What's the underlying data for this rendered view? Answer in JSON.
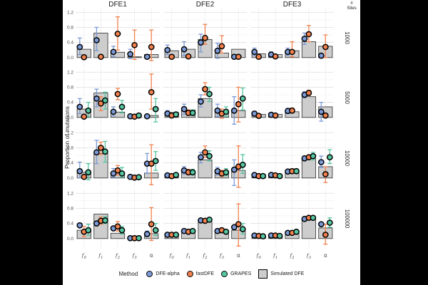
{
  "figure": {
    "y_axis_title": "Proportion of mutations",
    "sites_line1": "#",
    "sites_line2": "Sites",
    "y_ticks": [
      "0.0",
      "0.4",
      "0.8",
      "1.2"
    ]
  },
  "legend": {
    "title": "Method",
    "items": [
      {
        "label": "DFE-alpha",
        "color": "#7C9AD6",
        "type": "point"
      },
      {
        "label": "fastDFE",
        "color": "#F2814E",
        "type": "point"
      },
      {
        "label": "GRAPES",
        "color": "#56C6A2",
        "type": "point"
      },
      {
        "label": "Simulated DFE",
        "color": "#CDCDCD",
        "type": "bar"
      }
    ]
  },
  "colors": {
    "DFE-alpha": "#7C9AD6",
    "fastDFE": "#F2814E",
    "GRAPES": "#56C6A2",
    "bar_fill": "#CDCDCD",
    "bar_stroke": "#3F3F3F",
    "grid_major": "#E3E3E3",
    "grid_minor": "#F2F2F2",
    "grid_vertical": "#ECECEC",
    "axis_text": "#4D4D4D",
    "title_text": "#1A1A1A"
  },
  "chart_data": {
    "type": "bar",
    "description": "Facet grid of simulated DFE bars with method estimate points and error bars",
    "columns": [
      "DFE1",
      "DFE2",
      "DFE3"
    ],
    "rows": [
      "1000",
      "5000",
      "10000",
      "100000"
    ],
    "categories": [
      "f0",
      "f1",
      "f2",
      "f3",
      "alpha"
    ],
    "category_display": [
      {
        "base": "f",
        "sub": "0"
      },
      {
        "base": "f",
        "sub": "1"
      },
      {
        "base": "f",
        "sub": "2"
      },
      {
        "base": "f",
        "sub": "3"
      },
      {
        "base": "α",
        "sub": ""
      }
    ],
    "ylabel": "Proportion of mutations",
    "ylim": [
      -0.25,
      1.3
    ],
    "y_major_ticks": [
      0.0,
      0.4,
      0.8,
      1.2
    ],
    "y_minor_ticks": [
      0.2,
      0.6,
      1.0
    ],
    "panels": [
      {
        "col": "DFE1",
        "row": "1000",
        "bars": [
          0.22,
          0.65,
          0.14,
          0.02,
          0.08
        ],
        "series": [
          {
            "method": "DFE-alpha",
            "y": [
              0.28,
              0.46,
              0.15,
              0.09,
              0.02
            ],
            "lo": [
              0.08,
              0.18,
              0.03,
              -0.03,
              0.0
            ],
            "hi": [
              0.52,
              0.8,
              0.3,
              0.22,
              0.05
            ]
          },
          {
            "method": "fastDFE",
            "y": [
              0.01,
              0.02,
              0.63,
              0.33,
              0.28
            ],
            "lo": [
              0.0,
              0.01,
              0.2,
              -0.05,
              -0.08
            ],
            "hi": [
              0.03,
              0.04,
              1.08,
              0.73,
              0.73
            ]
          }
        ]
      },
      {
        "col": "DFE2",
        "row": "1000",
        "bars": [
          0.18,
          0.22,
          0.48,
          0.12,
          0.22
        ],
        "series": [
          {
            "method": "DFE-alpha",
            "y": [
              0.2,
              0.22,
              0.4,
              0.18,
              0.02
            ],
            "lo": [
              0.08,
              0.05,
              0.15,
              -0.02,
              0.0
            ],
            "hi": [
              0.33,
              0.42,
              0.62,
              0.38,
              0.05
            ]
          },
          {
            "method": "fastDFE",
            "y": [
              0.02,
              0.03,
              0.52,
              0.3,
              0.02
            ],
            "lo": [
              0.01,
              0.01,
              0.35,
              0.12,
              0.0
            ],
            "hi": [
              0.04,
              0.05,
              0.88,
              0.58,
              0.05
            ]
          }
        ]
      },
      {
        "col": "DFE3",
        "row": "1000",
        "bars": [
          0.1,
          0.08,
          0.18,
          0.42,
          0.3
        ],
        "series": [
          {
            "method": "DFE-alpha",
            "y": [
              0.15,
              0.08,
              0.15,
              0.5,
              0.05
            ],
            "lo": [
              0.05,
              0.02,
              0.05,
              0.35,
              0.02
            ],
            "hi": [
              0.25,
              0.15,
              0.25,
              0.65,
              0.08
            ]
          },
          {
            "method": "fastDFE",
            "y": [
              0.02,
              0.03,
              0.15,
              0.62,
              0.28
            ],
            "lo": [
              0.01,
              0.01,
              0.02,
              0.42,
              0.0
            ],
            "hi": [
              0.04,
              0.05,
              0.42,
              0.85,
              0.6
            ]
          }
        ]
      },
      {
        "col": "DFE1",
        "row": "5000",
        "bars": [
          0.22,
          0.65,
          0.14,
          0.01,
          0.05
        ],
        "series": [
          {
            "method": "DFE-alpha",
            "y": [
              0.28,
              0.5,
              0.15,
              0.03,
              0.03
            ],
            "lo": [
              0.1,
              0.28,
              0.04,
              0.01,
              0.01
            ],
            "hi": [
              0.5,
              0.75,
              0.28,
              0.06,
              0.06
            ]
          },
          {
            "method": "fastDFE",
            "y": [
              0.02,
              0.37,
              0.62,
              0.02,
              0.67
            ],
            "lo": [
              0.01,
              0.18,
              0.47,
              0.01,
              0.22
            ],
            "hi": [
              0.04,
              0.55,
              0.77,
              0.04,
              1.15
            ]
          },
          {
            "method": "GRAPES",
            "y": [
              0.18,
              0.45,
              0.28,
              0.05,
              0.22
            ],
            "lo": [
              0.02,
              0.22,
              0.12,
              0.02,
              -0.12
            ],
            "hi": [
              0.4,
              0.67,
              0.45,
              0.09,
              0.5
            ]
          }
        ]
      },
      {
        "col": "DFE2",
        "row": "5000",
        "bars": [
          0.13,
          0.2,
          0.5,
          0.15,
          0.18
        ],
        "series": [
          {
            "method": "DFE-alpha",
            "y": [
              0.1,
              0.22,
              0.42,
              0.18,
              0.18
            ],
            "lo": [
              0.04,
              0.08,
              0.28,
              0.02,
              -0.18
            ],
            "hi": [
              0.18,
              0.35,
              0.6,
              0.35,
              0.55
            ]
          },
          {
            "method": "fastDFE",
            "y": [
              0.05,
              0.12,
              0.75,
              0.1,
              0.35
            ],
            "lo": [
              0.02,
              0.05,
              0.6,
              -0.02,
              -0.12
            ],
            "hi": [
              0.09,
              0.2,
              0.92,
              0.22,
              0.8
            ]
          },
          {
            "method": "GRAPES",
            "y": [
              0.08,
              0.12,
              0.62,
              0.15,
              0.5
            ],
            "lo": [
              0.03,
              0.05,
              0.42,
              0.02,
              0.2
            ],
            "hi": [
              0.14,
              0.2,
              0.8,
              0.28,
              0.78
            ]
          }
        ]
      },
      {
        "col": "DFE3",
        "row": "5000",
        "bars": [
          0.08,
          0.08,
          0.15,
          0.55,
          0.28
        ],
        "series": [
          {
            "method": "DFE-alpha",
            "y": [
              0.1,
              0.07,
              0.17,
              0.6,
              0.15
            ],
            "lo": [
              0.05,
              0.03,
              0.1,
              0.52,
              -0.1
            ],
            "hi": [
              0.16,
              0.12,
              0.24,
              0.68,
              0.4
            ]
          },
          {
            "method": "fastDFE",
            "y": [
              0.04,
              0.05,
              0.18,
              0.65,
              0.05
            ],
            "lo": [
              0.02,
              0.02,
              0.12,
              0.58,
              0.02
            ],
            "hi": [
              0.07,
              0.08,
              0.25,
              0.72,
              0.09
            ]
          }
        ]
      },
      {
        "col": "DFE1",
        "row": "10000",
        "bars": [
          0.15,
          0.65,
          0.14,
          0.02,
          0.13
        ],
        "series": [
          {
            "method": "DFE-alpha",
            "y": [
              0.18,
              0.68,
              0.12,
              0.03,
              0.38
            ],
            "lo": [
              0.0,
              0.38,
              0.02,
              0.01,
              0.12
            ],
            "hi": [
              0.42,
              1.0,
              0.25,
              0.06,
              0.65
            ]
          },
          {
            "method": "fastDFE",
            "y": [
              0.03,
              0.8,
              0.2,
              0.01,
              0.38
            ],
            "lo": [
              0.01,
              0.62,
              0.08,
              0.0,
              -0.18
            ],
            "hi": [
              0.06,
              0.95,
              0.33,
              0.03,
              0.88
            ]
          },
          {
            "method": "GRAPES",
            "y": [
              0.15,
              0.7,
              0.12,
              0.02,
              0.45
            ],
            "lo": [
              -0.05,
              0.42,
              0.02,
              0.01,
              0.2
            ],
            "hi": [
              0.38,
              0.97,
              0.28,
              0.05,
              0.7
            ]
          }
        ]
      },
      {
        "col": "DFE2",
        "row": "10000",
        "bars": [
          0.1,
          0.18,
          0.48,
          0.15,
          0.2
        ],
        "series": [
          {
            "method": "DFE-alpha",
            "y": [
              0.07,
              0.2,
              0.55,
              0.18,
              0.22
            ],
            "lo": [
              0.03,
              0.1,
              0.4,
              0.08,
              -0.2
            ],
            "hi": [
              0.12,
              0.3,
              0.68,
              0.28,
              0.48
            ]
          },
          {
            "method": "fastDFE",
            "y": [
              0.05,
              0.15,
              0.68,
              0.12,
              0.3
            ],
            "lo": [
              0.02,
              0.08,
              0.55,
              0.04,
              -0.25
            ],
            "hi": [
              0.09,
              0.23,
              0.85,
              0.2,
              0.85
            ]
          },
          {
            "method": "GRAPES",
            "y": [
              0.08,
              0.15,
              0.58,
              0.15,
              0.35
            ],
            "lo": [
              0.03,
              0.08,
              0.45,
              0.06,
              0.12
            ],
            "hi": [
              0.14,
              0.23,
              0.72,
              0.25,
              0.62
            ]
          }
        ]
      },
      {
        "col": "DFE3",
        "row": "10000",
        "bars": [
          0.08,
          0.08,
          0.15,
          0.52,
          0.3
        ],
        "series": [
          {
            "method": "DFE-alpha",
            "y": [
              0.08,
              0.08,
              0.17,
              0.52,
              0.42
            ],
            "lo": [
              0.04,
              0.04,
              0.12,
              0.46,
              0.28
            ],
            "hi": [
              0.13,
              0.13,
              0.23,
              0.58,
              0.58
            ]
          },
          {
            "method": "fastDFE",
            "y": [
              0.05,
              0.07,
              0.18,
              0.55,
              0.1
            ],
            "lo": [
              0.02,
              0.03,
              0.13,
              0.49,
              -0.12
            ],
            "hi": [
              0.08,
              0.11,
              0.24,
              0.61,
              0.3
            ]
          },
          {
            "method": "GRAPES",
            "y": [
              0.05,
              0.05,
              0.18,
              0.58,
              0.55
            ],
            "lo": [
              0.02,
              0.02,
              0.13,
              0.48,
              0.38
            ],
            "hi": [
              0.09,
              0.09,
              0.24,
              0.68,
              0.75
            ]
          }
        ]
      },
      {
        "col": "DFE1",
        "row": "100000",
        "bars": [
          0.22,
          0.65,
          0.14,
          0.01,
          0.13
        ],
        "series": [
          {
            "method": "DFE-alpha",
            "y": [
              0.35,
              0.4,
              0.27,
              0.01,
              0.12
            ],
            "lo": [
              0.3,
              0.36,
              0.22,
              0.0,
              0.05
            ],
            "hi": [
              0.4,
              0.45,
              0.32,
              0.02,
              0.2
            ]
          },
          {
            "method": "fastDFE",
            "y": [
              0.18,
              0.47,
              0.32,
              0.01,
              0.38
            ],
            "lo": [
              0.05,
              0.38,
              0.2,
              0.0,
              -0.05
            ],
            "hi": [
              0.32,
              0.57,
              0.45,
              0.02,
              0.82
            ]
          },
          {
            "method": "GRAPES",
            "y": [
              0.22,
              0.48,
              0.22,
              0.01,
              0.22
            ],
            "lo": [
              0.08,
              0.4,
              0.12,
              0.0,
              0.08
            ],
            "hi": [
              0.38,
              0.58,
              0.32,
              0.02,
              0.4
            ]
          }
        ]
      },
      {
        "col": "DFE2",
        "row": "100000",
        "bars": [
          0.1,
          0.15,
          0.45,
          0.15,
          0.22
        ],
        "series": [
          {
            "method": "DFE-alpha",
            "y": [
              0.1,
              0.2,
              0.48,
              0.2,
              0.3
            ],
            "lo": [
              0.07,
              0.17,
              0.44,
              0.17,
              0.25
            ],
            "hi": [
              0.13,
              0.23,
              0.52,
              0.23,
              0.35
            ]
          },
          {
            "method": "fastDFE",
            "y": [
              0.1,
              0.18,
              0.47,
              0.22,
              0.38
            ],
            "lo": [
              0.07,
              0.15,
              0.43,
              0.18,
              -0.2
            ],
            "hi": [
              0.13,
              0.21,
              0.51,
              0.26,
              0.92
            ]
          },
          {
            "method": "GRAPES",
            "y": [
              0.1,
              0.2,
              0.5,
              0.18,
              0.25
            ],
            "lo": [
              0.07,
              0.17,
              0.46,
              0.15,
              0.12
            ],
            "hi": [
              0.13,
              0.23,
              0.54,
              0.21,
              0.4
            ]
          }
        ]
      },
      {
        "col": "DFE3",
        "row": "100000",
        "bars": [
          0.08,
          0.08,
          0.15,
          0.5,
          0.28
        ],
        "series": [
          {
            "method": "DFE-alpha",
            "y": [
              0.08,
              0.08,
              0.15,
              0.52,
              0.38
            ],
            "lo": [
              0.06,
              0.06,
              0.12,
              0.49,
              0.33
            ],
            "hi": [
              0.1,
              0.1,
              0.18,
              0.55,
              0.43
            ]
          },
          {
            "method": "fastDFE",
            "y": [
              0.07,
              0.08,
              0.15,
              0.55,
              0.1
            ],
            "lo": [
              0.05,
              0.06,
              0.12,
              0.52,
              -0.15
            ],
            "hi": [
              0.09,
              0.1,
              0.18,
              0.58,
              0.38
            ]
          },
          {
            "method": "GRAPES",
            "y": [
              0.06,
              0.07,
              0.18,
              0.55,
              0.42
            ],
            "lo": [
              0.04,
              0.05,
              0.15,
              0.52,
              0.3
            ],
            "hi": [
              0.08,
              0.09,
              0.21,
              0.58,
              0.55
            ]
          }
        ]
      }
    ]
  }
}
